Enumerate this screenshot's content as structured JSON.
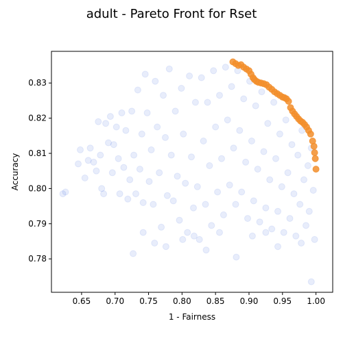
{
  "chart_data": {
    "type": "scatter",
    "title": "adult - Pareto Front for Rset",
    "xlabel": "1 - Fairness",
    "ylabel": "Accuracy",
    "xlim": [
      0.605,
      1.025
    ],
    "ylim": [
      0.7705,
      0.839
    ],
    "xticks": [
      0.65,
      0.7,
      0.75,
      0.8,
      0.85,
      0.9,
      0.95,
      1.0
    ],
    "xtick_labels": [
      "0.65",
      "0.70",
      "0.75",
      "0.80",
      "0.85",
      "0.90",
      "0.95",
      "1.00"
    ],
    "yticks": [
      0.78,
      0.79,
      0.8,
      0.81,
      0.82,
      0.83
    ],
    "ytick_labels": [
      "0.78",
      "0.79",
      "0.80",
      "0.81",
      "0.82",
      "0.83"
    ],
    "grid": false,
    "series": [
      {
        "role": "rset-models",
        "color": "#4169e1",
        "opacity": 0.12,
        "points": [
          [
            0.622,
            0.7985
          ],
          [
            0.626,
            0.799
          ],
          [
            0.645,
            0.807
          ],
          [
            0.648,
            0.811
          ],
          [
            0.655,
            0.803
          ],
          [
            0.66,
            0.808
          ],
          [
            0.663,
            0.8115
          ],
          [
            0.668,
            0.8075
          ],
          [
            0.672,
            0.805
          ],
          [
            0.675,
            0.819
          ],
          [
            0.678,
            0.8095
          ],
          [
            0.68,
            0.8
          ],
          [
            0.683,
            0.7985
          ],
          [
            0.686,
            0.8185
          ],
          [
            0.69,
            0.813
          ],
          [
            0.693,
            0.8205
          ],
          [
            0.696,
            0.8045
          ],
          [
            0.698,
            0.8125
          ],
          [
            0.702,
            0.8175
          ],
          [
            0.705,
            0.8085
          ],
          [
            0.707,
            0.7985
          ],
          [
            0.71,
            0.8215
          ],
          [
            0.713,
            0.806
          ],
          [
            0.716,
            0.8165
          ],
          [
            0.719,
            0.797
          ],
          [
            0.722,
            0.8025
          ],
          [
            0.725,
            0.822
          ],
          [
            0.728,
            0.8095
          ],
          [
            0.731,
            0.7985
          ],
          [
            0.734,
            0.828
          ],
          [
            0.737,
            0.8055
          ],
          [
            0.74,
            0.8155
          ],
          [
            0.742,
            0.796
          ],
          [
            0.745,
            0.8325
          ],
          [
            0.748,
            0.8215
          ],
          [
            0.751,
            0.802
          ],
          [
            0.754,
            0.811
          ],
          [
            0.757,
            0.7955
          ],
          [
            0.76,
            0.8305
          ],
          [
            0.763,
            0.8175
          ],
          [
            0.766,
            0.8045
          ],
          [
            0.769,
            0.789
          ],
          [
            0.772,
            0.8265
          ],
          [
            0.775,
            0.8145
          ],
          [
            0.778,
            0.798
          ],
          [
            0.781,
            0.834
          ],
          [
            0.784,
            0.8095
          ],
          [
            0.787,
            0.7965
          ],
          [
            0.79,
            0.822
          ],
          [
            0.793,
            0.8035
          ],
          [
            0.796,
            0.791
          ],
          [
            0.799,
            0.8285
          ],
          [
            0.802,
            0.8155
          ],
          [
            0.805,
            0.8015
          ],
          [
            0.808,
            0.7875
          ],
          [
            0.811,
            0.832
          ],
          [
            0.814,
            0.809
          ],
          [
            0.817,
            0.7945
          ],
          [
            0.82,
            0.8245
          ],
          [
            0.823,
            0.8005
          ],
          [
            0.826,
            0.7855
          ],
          [
            0.829,
            0.8315
          ],
          [
            0.832,
            0.8135
          ],
          [
            0.835,
            0.7955
          ],
          [
            0.838,
            0.8245
          ],
          [
            0.841,
            0.8065
          ],
          [
            0.844,
            0.7895
          ],
          [
            0.847,
            0.8335
          ],
          [
            0.85,
            0.8175
          ],
          [
            0.853,
            0.799
          ],
          [
            0.856,
            0.8265
          ],
          [
            0.859,
            0.8085
          ],
          [
            0.862,
            0.7925
          ],
          [
            0.865,
            0.8345
          ],
          [
            0.868,
            0.8195
          ],
          [
            0.871,
            0.801
          ],
          [
            0.874,
            0.829
          ],
          [
            0.877,
            0.8115
          ],
          [
            0.88,
            0.7955
          ],
          [
            0.883,
            0.8335
          ],
          [
            0.886,
            0.8165
          ],
          [
            0.889,
            0.799
          ],
          [
            0.892,
            0.8255
          ],
          [
            0.895,
            0.8075
          ],
          [
            0.898,
            0.7915
          ],
          [
            0.901,
            0.8305
          ],
          [
            0.904,
            0.8135
          ],
          [
            0.907,
            0.7965
          ],
          [
            0.91,
            0.8235
          ],
          [
            0.913,
            0.8055
          ],
          [
            0.916,
            0.7905
          ],
          [
            0.919,
            0.8275
          ],
          [
            0.922,
            0.8105
          ],
          [
            0.925,
            0.7945
          ],
          [
            0.928,
            0.8185
          ],
          [
            0.931,
            0.8025
          ],
          [
            0.934,
            0.7885
          ],
          [
            0.937,
            0.8245
          ],
          [
            0.94,
            0.8085
          ],
          [
            0.943,
            0.7935
          ],
          [
            0.946,
            0.8155
          ],
          [
            0.949,
            0.8005
          ],
          [
            0.952,
            0.7875
          ],
          [
            0.955,
            0.8195
          ],
          [
            0.958,
            0.8045
          ],
          [
            0.961,
            0.7915
          ],
          [
            0.964,
            0.8125
          ],
          [
            0.967,
            0.7985
          ],
          [
            0.97,
            0.7865
          ],
          [
            0.973,
            0.8095
          ],
          [
            0.976,
            0.7955
          ],
          [
            0.979,
            0.8165
          ],
          [
            0.982,
            0.8025
          ],
          [
            0.985,
            0.7895
          ],
          [
            0.988,
            0.8065
          ],
          [
            0.99,
            0.7935
          ],
          [
            0.993,
            0.8115
          ],
          [
            0.996,
            0.7995
          ],
          [
            0.998,
            0.7855
          ],
          [
            0.727,
            0.7815
          ],
          [
            0.776,
            0.7835
          ],
          [
            0.801,
            0.7855
          ],
          [
            0.836,
            0.7825
          ],
          [
            0.881,
            0.7805
          ],
          [
            0.905,
            0.7865
          ],
          [
            0.943,
            0.7835
          ],
          [
            0.978,
            0.7845
          ],
          [
            0.993,
            0.7735
          ],
          [
            0.742,
            0.7875
          ],
          [
            0.759,
            0.7845
          ],
          [
            0.818,
            0.7865
          ],
          [
            0.856,
            0.7875
          ],
          [
            0.925,
            0.7875
          ]
        ]
      },
      {
        "role": "pareto-front",
        "color": "#f28e2b",
        "opacity": 0.85,
        "points": [
          [
            0.876,
            0.836
          ],
          [
            0.88,
            0.8355
          ],
          [
            0.884,
            0.835
          ],
          [
            0.888,
            0.8352
          ],
          [
            0.892,
            0.8345
          ],
          [
            0.896,
            0.834
          ],
          [
            0.9,
            0.8335
          ],
          [
            0.903,
            0.8325
          ],
          [
            0.906,
            0.8315
          ],
          [
            0.908,
            0.831
          ],
          [
            0.911,
            0.8305
          ],
          [
            0.914,
            0.8302
          ],
          [
            0.918,
            0.83
          ],
          [
            0.922,
            0.8298
          ],
          [
            0.926,
            0.8295
          ],
          [
            0.93,
            0.8288
          ],
          [
            0.934,
            0.8282
          ],
          [
            0.938,
            0.8275
          ],
          [
            0.942,
            0.827
          ],
          [
            0.946,
            0.8265
          ],
          [
            0.95,
            0.826
          ],
          [
            0.953,
            0.8258
          ],
          [
            0.956,
            0.8255
          ],
          [
            0.959,
            0.8248
          ],
          [
            0.962,
            0.823
          ],
          [
            0.965,
            0.822
          ],
          [
            0.968,
            0.8212
          ],
          [
            0.971,
            0.8205
          ],
          [
            0.974,
            0.8198
          ],
          [
            0.977,
            0.8192
          ],
          [
            0.98,
            0.8188
          ],
          [
            0.983,
            0.8182
          ],
          [
            0.986,
            0.8175
          ],
          [
            0.989,
            0.8165
          ],
          [
            0.992,
            0.8155
          ],
          [
            0.995,
            0.8135
          ],
          [
            0.997,
            0.812
          ],
          [
            0.998,
            0.8102
          ],
          [
            0.999,
            0.8085
          ],
          [
            1.0,
            0.8055
          ]
        ]
      }
    ]
  }
}
